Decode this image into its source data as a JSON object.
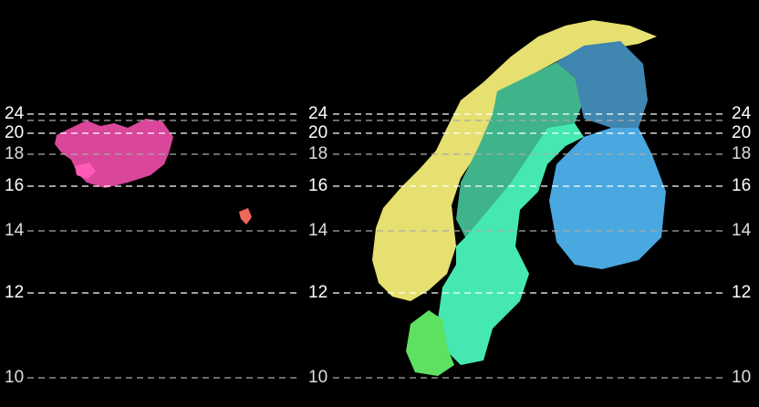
{
  "map": {
    "contour_levels": [
      {
        "label": "24",
        "bright": true
      },
      {
        "label": "",
        "bright": false
      },
      {
        "label": "20",
        "bright": true
      },
      {
        "label": "18",
        "bright": false
      },
      {
        "label": "16",
        "bright": true
      },
      {
        "label": "14",
        "bright": false
      },
      {
        "label": "12",
        "bright": true
      },
      {
        "label": "10",
        "bright": false
      }
    ],
    "regions": [
      {
        "name": "Iceland",
        "color": "#d9469a"
      },
      {
        "name": "Faroe Islands",
        "color": "#f0685a"
      },
      {
        "name": "Norway",
        "color": "#e6e070"
      },
      {
        "name": "Norway north",
        "color": "#c9c060"
      },
      {
        "name": "Sweden north",
        "color": "#3fb48a"
      },
      {
        "name": "Sweden",
        "color": "#45e8b0"
      },
      {
        "name": "Finland",
        "color": "#4aa8e0"
      },
      {
        "name": "Finland north",
        "color": "#3f86b0"
      },
      {
        "name": "Denmark",
        "color": "#5ee060"
      }
    ]
  }
}
